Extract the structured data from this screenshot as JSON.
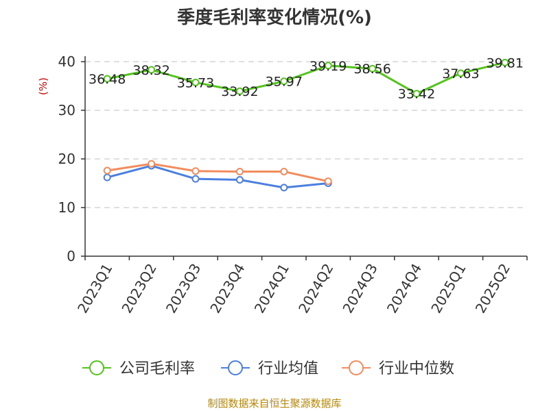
{
  "chart_data": {
    "type": "line",
    "title": "季度毛利率变化情况(%)",
    "ylabel": "(%)",
    "ylim": [
      0,
      40
    ],
    "yticks": [
      "0",
      "10",
      "20",
      "30",
      "40"
    ],
    "grid": true,
    "categories": [
      "2023Q1",
      "2023Q2",
      "2023Q3",
      "2023Q4",
      "2024Q1",
      "2024Q2",
      "2024Q3",
      "2024Q4",
      "2025Q1",
      "2025Q2"
    ],
    "series": [
      {
        "name": "公司毛利率",
        "values": [
          36.48,
          38.32,
          35.73,
          33.92,
          35.97,
          39.19,
          38.56,
          33.42,
          37.63,
          39.81
        ],
        "labels": [
          "36.48",
          "38.32",
          "35.73",
          "33.92",
          "35.97",
          "39.19",
          "38.56",
          "33.42",
          "37.63",
          "39.81"
        ],
        "color": "#52c41a"
      },
      {
        "name": "行业均值",
        "values": [
          16.2,
          18.6,
          15.9,
          15.7,
          14.1,
          15.0,
          null,
          null,
          null,
          null
        ],
        "color": "#4a7fe0"
      },
      {
        "name": "行业中位数",
        "values": [
          17.6,
          19.0,
          17.5,
          17.4,
          17.4,
          15.4,
          null,
          null,
          null,
          null
        ],
        "color": "#f28c5c"
      }
    ],
    "legend_position": "bottom"
  },
  "source": "制图数据来自恒生聚源数据库",
  "colors": {
    "ylabel": "#cc0000",
    "source": "#b8860b",
    "grid": "#cccccc",
    "axis": "#333333"
  }
}
